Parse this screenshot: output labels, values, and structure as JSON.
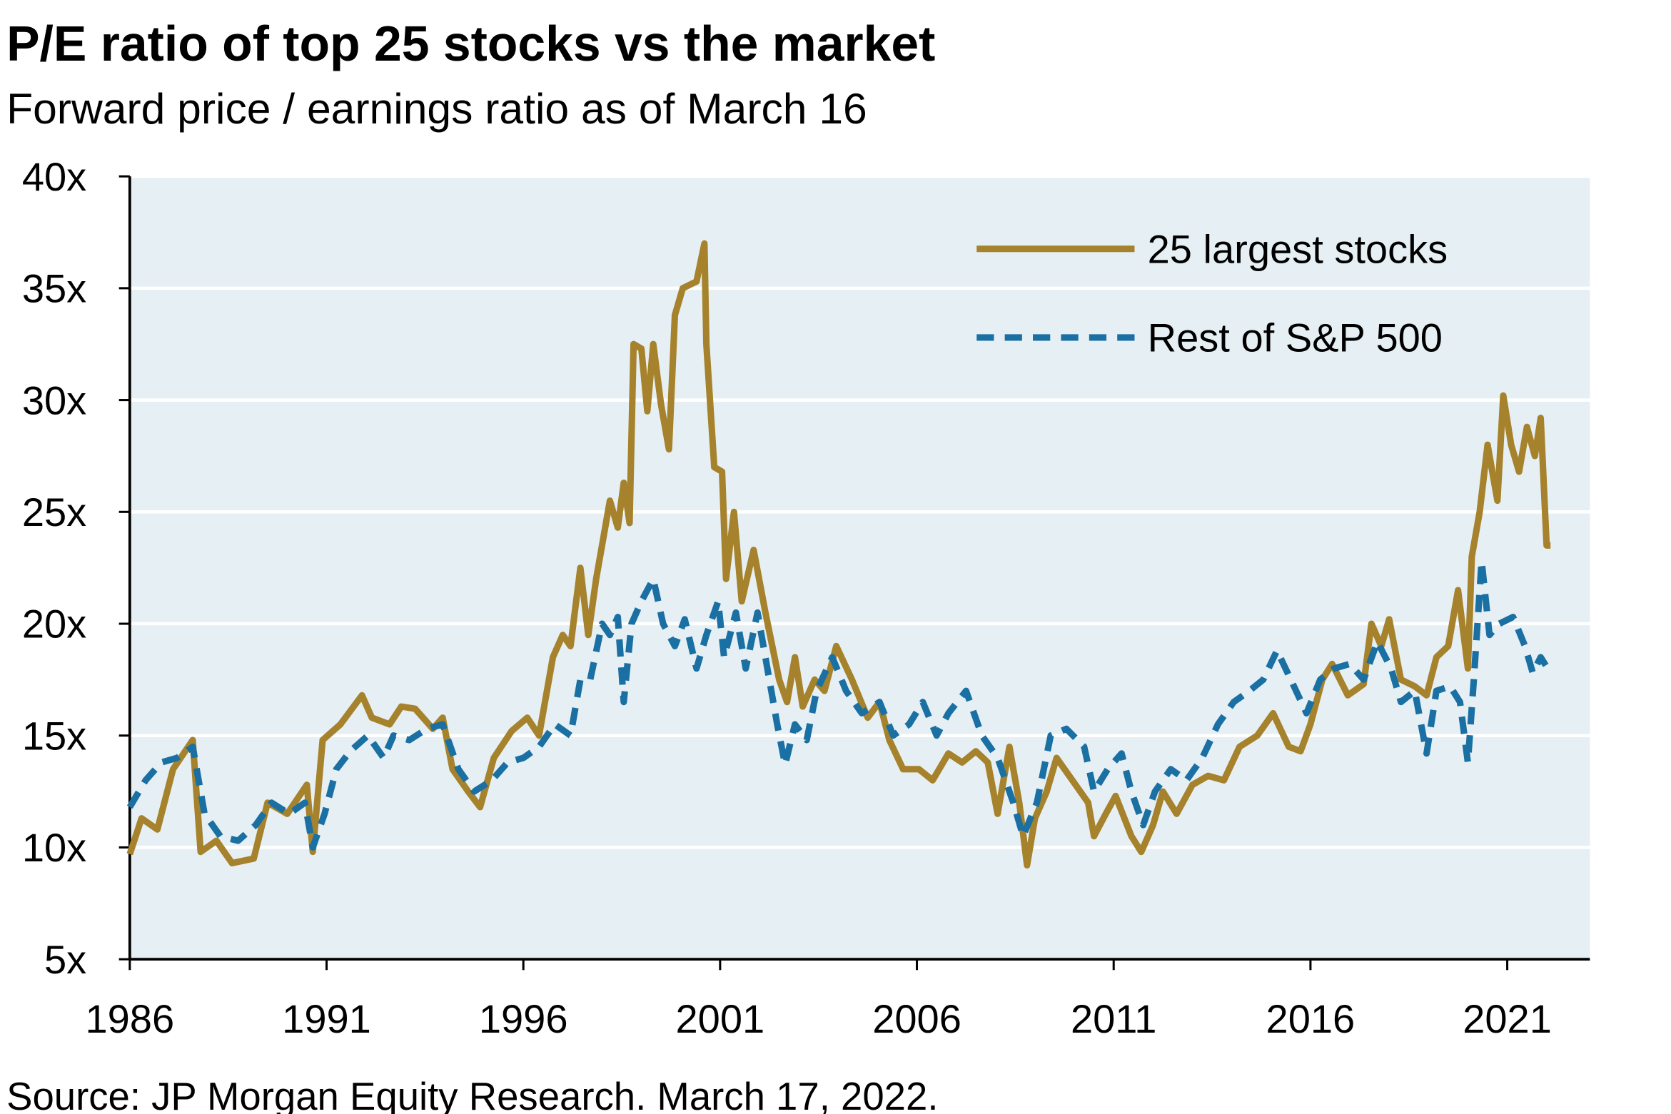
{
  "chart_data": {
    "type": "line",
    "title": "P/E ratio of top 25 stocks vs the market",
    "subtitle": "Forward price / earnings ratio as of March 16",
    "source": "Source: JP Morgan Equity Research. March 17, 2022.",
    "xlim": [
      1986,
      2023.1
    ],
    "xticks": [
      1986,
      1991,
      1996,
      2001,
      2006,
      2011,
      2016,
      2021
    ],
    "ylim": [
      5,
      40
    ],
    "yticks": [
      {
        "value": 5,
        "label": "5x"
      },
      {
        "value": 10,
        "label": "10x"
      },
      {
        "value": 15,
        "label": "15x"
      },
      {
        "value": 20,
        "label": "20x"
      },
      {
        "value": 25,
        "label": "25x"
      },
      {
        "value": 30,
        "label": "30x"
      },
      {
        "value": 35,
        "label": "35x"
      },
      {
        "value": 40,
        "label": "40x"
      }
    ],
    "grid": true,
    "legend": "upper right",
    "series": [
      {
        "name": "25 largest stocks",
        "color": "#a5822b",
        "style": "solid",
        "x": [
          1986.0,
          1986.3,
          1986.7,
          1987.1,
          1987.6,
          1987.8,
          1988.2,
          1988.6,
          1989.15,
          1989.5,
          1990.0,
          1990.5,
          1990.65,
          1990.9,
          1991.35,
          1991.9,
          1992.15,
          1992.6,
          1992.9,
          1993.25,
          1993.7,
          1993.95,
          1994.2,
          1994.6,
          1994.9,
          1995.25,
          1995.7,
          1996.1,
          1996.4,
          1996.75,
          1997.0,
          1997.2,
          1997.45,
          1997.65,
          1997.85,
          1998.2,
          1998.4,
          1998.55,
          1998.7,
          1998.8,
          1999.0,
          1999.15,
          1999.3,
          1999.5,
          1999.7,
          1999.85,
          2000.05,
          2000.4,
          2000.6,
          2000.65,
          2000.85,
          2001.05,
          2001.15,
          2001.35,
          2001.55,
          2001.85,
          2002.15,
          2002.5,
          2002.7,
          2002.9,
          2003.1,
          2003.4,
          2003.65,
          2003.95,
          2004.35,
          2004.75,
          2005.05,
          2005.3,
          2005.65,
          2006.05,
          2006.4,
          2006.8,
          2007.15,
          2007.5,
          2007.8,
          2008.05,
          2008.35,
          2008.6,
          2008.8,
          2009.0,
          2009.3,
          2009.55,
          2009.95,
          2010.35,
          2010.5,
          2010.8,
          2011.05,
          2011.45,
          2011.7,
          2012.0,
          2012.25,
          2012.6,
          2013.0,
          2013.4,
          2013.8,
          2014.2,
          2014.65,
          2015.05,
          2015.45,
          2015.75,
          2016.0,
          2016.3,
          2016.55,
          2016.95,
          2017.35,
          2017.55,
          2017.8,
          2018.0,
          2018.3,
          2018.65,
          2018.95,
          2019.2,
          2019.5,
          2019.75,
          2020.0,
          2020.1,
          2020.3,
          2020.5,
          2020.75,
          2020.9,
          2021.1,
          2021.3,
          2021.5,
          2021.7,
          2021.85,
          2022.0,
          2022.1
        ],
        "values": [
          9.7,
          11.3,
          10.8,
          13.5,
          14.8,
          9.8,
          10.3,
          9.3,
          9.5,
          12.0,
          11.5,
          12.8,
          9.8,
          14.8,
          15.5,
          16.8,
          15.8,
          15.5,
          16.3,
          16.2,
          15.3,
          15.8,
          13.5,
          12.5,
          11.8,
          14.0,
          15.2,
          15.8,
          15.0,
          18.5,
          19.5,
          19.0,
          22.5,
          19.5,
          22.0,
          25.5,
          24.3,
          26.3,
          24.5,
          32.5,
          32.3,
          29.5,
          32.5,
          29.8,
          27.8,
          33.8,
          35.0,
          35.3,
          37.0,
          32.5,
          27.0,
          26.8,
          22.0,
          25.0,
          21.0,
          23.3,
          20.5,
          17.5,
          16.5,
          18.5,
          16.3,
          17.5,
          17.0,
          19.0,
          17.5,
          15.8,
          16.5,
          14.8,
          13.5,
          13.5,
          13.0,
          14.2,
          13.8,
          14.3,
          13.8,
          11.5,
          14.5,
          12.0,
          9.2,
          11.3,
          12.5,
          14.0,
          13.0,
          12.0,
          10.5,
          11.5,
          12.3,
          10.5,
          9.8,
          11.0,
          12.5,
          11.5,
          12.8,
          13.2,
          13.0,
          14.5,
          15.0,
          16.0,
          14.5,
          14.3,
          15.5,
          17.5,
          18.2,
          16.8,
          17.3,
          20.0,
          19.0,
          20.2,
          17.5,
          17.2,
          16.8,
          18.5,
          19.0,
          21.5,
          18.0,
          23.0,
          25.0,
          28.0,
          25.5,
          30.2,
          28.0,
          26.8,
          28.8,
          27.5,
          29.2,
          23.5,
          23.5
        ]
      },
      {
        "name": "Rest of S&P 500",
        "color": "#1a6fa3",
        "style": "dashed",
        "x": [
          1986.0,
          1986.4,
          1986.8,
          1987.2,
          1987.6,
          1987.9,
          1988.3,
          1988.75,
          1989.2,
          1989.6,
          1990.05,
          1990.45,
          1990.65,
          1990.95,
          1991.25,
          1991.6,
          1992.05,
          1992.45,
          1992.7,
          1993.1,
          1993.55,
          1993.95,
          1994.35,
          1994.75,
          1995.2,
          1995.6,
          1996.0,
          1996.4,
          1996.8,
          1997.2,
          1997.45,
          1997.7,
          1998.0,
          1998.2,
          1998.4,
          1998.55,
          1998.75,
          1999.0,
          1999.3,
          1999.55,
          1999.85,
          2000.1,
          2000.4,
          2000.65,
          2000.95,
          2001.1,
          2001.4,
          2001.65,
          2001.95,
          2002.2,
          2002.45,
          2002.65,
          2002.9,
          2003.2,
          2003.45,
          2003.85,
          2004.2,
          2004.6,
          2005.05,
          2005.4,
          2005.8,
          2006.15,
          2006.5,
          2006.8,
          2007.25,
          2007.65,
          2008.05,
          2008.45,
          2008.7,
          2009.05,
          2009.4,
          2009.8,
          2010.25,
          2010.5,
          2010.85,
          2011.2,
          2011.45,
          2011.75,
          2012.05,
          2012.45,
          2012.85,
          2013.25,
          2013.65,
          2014.05,
          2014.45,
          2014.8,
          2015.15,
          2015.5,
          2015.9,
          2016.25,
          2016.6,
          2017.0,
          2017.35,
          2017.7,
          2018.05,
          2018.3,
          2018.65,
          2018.95,
          2019.2,
          2019.55,
          2019.8,
          2020.0,
          2020.15,
          2020.35,
          2020.55,
          2020.8,
          2021.15,
          2021.45,
          2021.65,
          2021.85,
          2022.1
        ],
        "values": [
          11.8,
          13.0,
          13.8,
          14.0,
          14.5,
          11.5,
          10.5,
          10.3,
          11.0,
          12.0,
          11.5,
          12.0,
          10.0,
          11.5,
          13.5,
          14.3,
          15.0,
          14.0,
          15.0,
          14.8,
          15.3,
          15.5,
          13.5,
          12.5,
          13.0,
          13.8,
          14.0,
          14.5,
          15.5,
          15.0,
          17.5,
          17.5,
          20.0,
          19.5,
          20.3,
          16.5,
          20.0,
          21.0,
          22.0,
          20.0,
          19.0,
          20.2,
          18.0,
          19.5,
          21.0,
          18.5,
          20.5,
          18.0,
          20.5,
          18.0,
          15.5,
          13.7,
          15.5,
          14.8,
          17.0,
          18.5,
          17.0,
          16.0,
          16.5,
          15.0,
          15.5,
          16.5,
          15.0,
          16.0,
          17.0,
          15.0,
          14.0,
          12.0,
          10.5,
          12.0,
          15.0,
          15.3,
          14.5,
          12.5,
          13.5,
          14.2,
          12.5,
          11.0,
          12.5,
          13.5,
          13.0,
          14.0,
          15.5,
          16.5,
          17.0,
          17.5,
          18.8,
          17.5,
          16.0,
          17.5,
          18.0,
          18.2,
          17.5,
          19.2,
          18.0,
          16.5,
          17.0,
          14.2,
          17.0,
          17.2,
          16.5,
          13.8,
          17.5,
          22.8,
          19.5,
          20.0,
          20.3,
          19.0,
          17.8,
          18.5,
          17.8
        ]
      }
    ]
  }
}
